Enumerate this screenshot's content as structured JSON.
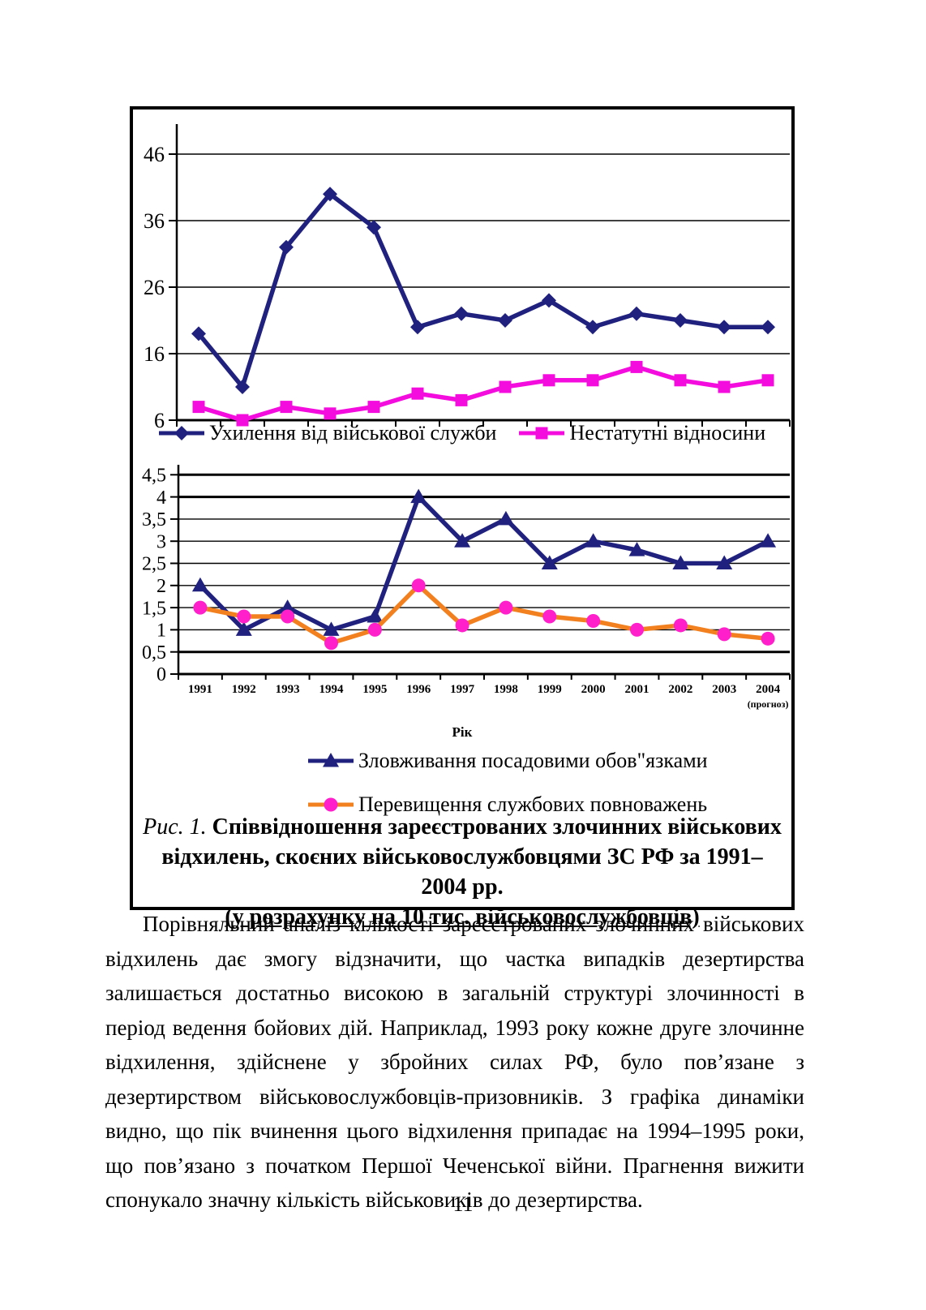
{
  "page": {
    "number": "11"
  },
  "figure": {
    "caption": {
      "prefix": "Рис. 1.",
      "main": " Співвідношення зареєстрованих злочинних військових відхилень, скоєних військовослужбовцями ЗС РФ за 1991–2004 рр.",
      "note": "(у розрахунку на 10 тис. військовослужбовців)"
    }
  },
  "chart_data": [
    {
      "type": "line",
      "title": "",
      "categories": [
        "1991",
        "1992",
        "1993",
        "1994",
        "1995",
        "1996",
        "1997",
        "1998",
        "1999",
        "2000",
        "2001",
        "2002",
        "2003",
        "2004"
      ],
      "show_x_labels": false,
      "ylim": [
        6,
        50
      ],
      "ytick_values": [
        6,
        16,
        26,
        36,
        46
      ],
      "ytick_labels": [
        "6",
        "16",
        "26",
        "36",
        "46"
      ],
      "grid": true,
      "legend_position": "bottom",
      "series": [
        {
          "name": "Ухилення від військової служби",
          "marker": "diamond",
          "line_color": "#20217f",
          "marker_color": "#20217f",
          "values": [
            19,
            11,
            32,
            40,
            35,
            20,
            22,
            21,
            24,
            20,
            22,
            21,
            20,
            20
          ]
        },
        {
          "name": "Нестатутні відносини",
          "marker": "square",
          "line_color": "#f40cde",
          "marker_color": "#f40cde",
          "values": [
            8,
            6,
            8,
            7,
            8,
            10,
            9,
            11,
            12,
            12,
            14,
            12,
            11,
            12
          ]
        }
      ]
    },
    {
      "type": "line",
      "title": "",
      "categories": [
        "1991",
        "1992",
        "1993",
        "1994",
        "1995",
        "1996",
        "1997",
        "1998",
        "1999",
        "2000",
        "2001",
        "2002",
        "2003",
        "2004"
      ],
      "show_x_labels": true,
      "category_note_last": "(прогноз)",
      "xlabel": "Рік",
      "ylim": [
        0,
        4.5
      ],
      "ytick_values": [
        0,
        0.5,
        1,
        1.5,
        2,
        2.5,
        3,
        3.5,
        4,
        4.5
      ],
      "ytick_labels": [
        "0",
        "0,5",
        "1",
        "1,5",
        "2",
        "2,5",
        "3",
        "3,5",
        "4",
        "4,5"
      ],
      "grid": true,
      "legend_position": "bottom",
      "series": [
        {
          "name": "Зловживання посадовими обов\"язками",
          "marker": "triangle",
          "line_color": "#20217f",
          "marker_color": "#20217f",
          "values": [
            2,
            1,
            1.5,
            1,
            1.3,
            4,
            3,
            3.5,
            2.5,
            3,
            2.8,
            2.5,
            2.5,
            3
          ]
        },
        {
          "name": "Перевищення службових повноважень",
          "marker": "circle",
          "line_color": "#f2801e",
          "marker_color": "#ff1fcb",
          "values": [
            1.5,
            1.3,
            1.3,
            0.7,
            1,
            2,
            1.1,
            1.5,
            1.3,
            1.2,
            1,
            1.1,
            0.9,
            0.8
          ]
        }
      ]
    }
  ],
  "body": {
    "paragraph": "Порівняльний аналіз кількості зареєстрованих злочинних військових відхилень дає змогу відзначити, що частка випадків дезертирства залишається достатньо високою в загальній структурі злочинності в період ведення бойових дій. Наприклад, 1993 року кожне друге злочинне відхилення, здійснене у збройних силах РФ, було пов’язане з дезертирством військовослужбовців-призовників. З графіка динаміки видно, що пік вчинення цього відхилення припадає на 1994–1995 роки, що пов’язано з початком Першої Чеченської війни. Прагнення вижити спонукало значну кількість військовиків до дезертирства."
  }
}
